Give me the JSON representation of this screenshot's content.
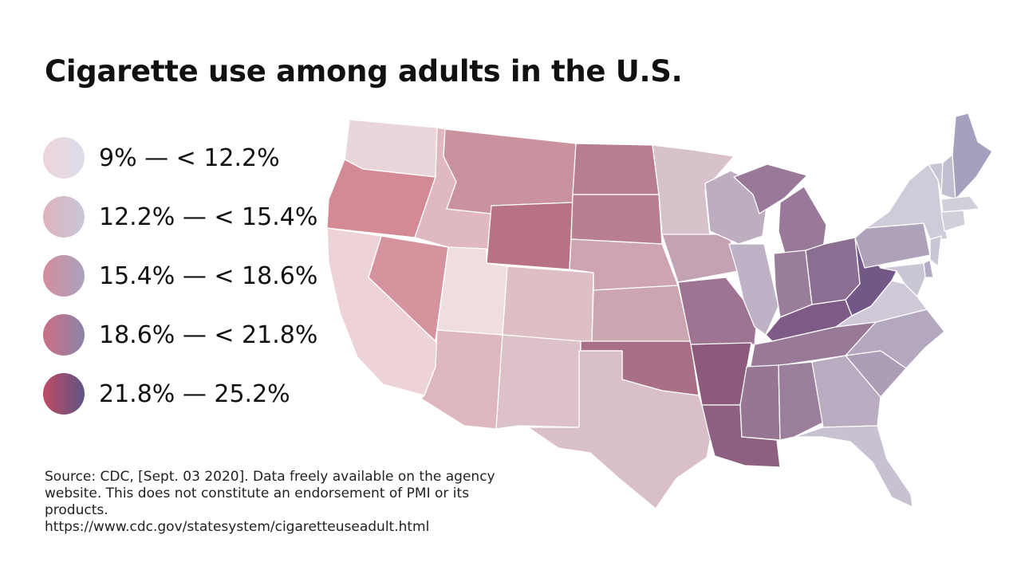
{
  "title": "Cigarette use among adults in the U.S.",
  "legend": [
    {
      "label": "9% — < 12.2%",
      "from": "#efd3da",
      "to": "#dcdde8"
    },
    {
      "label": "12.2% — < 15.4%",
      "from": "#dfb3bd",
      "to": "#c9c6d8"
    },
    {
      "label": "15.4% — < 18.6%",
      "from": "#d58d9c",
      "to": "#a9a3bf"
    },
    {
      "label": "18.6% — < 21.8%",
      "from": "#cc6f84",
      "to": "#8a84a8"
    },
    {
      "label": "21.8% — 25.2%",
      "from": "#c04a64",
      "to": "#5e5585"
    }
  ],
  "source": {
    "line1": "Source: CDC, [Sept. 03 2020]. Data freely available on the agency",
    "line2": "website. This does not constitute an endorsement of PMI or its",
    "line3": "products.",
    "url": "https://www.cdc.gov/statesystem/cigaretteuseadult.html"
  },
  "states": [
    {
      "name": "Washington",
      "fill": "#e8d6db"
    },
    {
      "name": "Oregon",
      "fill": "#d48a95"
    },
    {
      "name": "California",
      "fill": "#edd3d8"
    },
    {
      "name": "Nevada",
      "fill": "#d5939d"
    },
    {
      "name": "Idaho",
      "fill": "#e0b8c0"
    },
    {
      "name": "Montana",
      "fill": "#c9929e"
    },
    {
      "name": "Wyoming",
      "fill": "#b87285"
    },
    {
      "name": "Utah",
      "fill": "#efdde0"
    },
    {
      "name": "Arizona",
      "fill": "#deb6be"
    },
    {
      "name": "Colorado",
      "fill": "#dfbfc6"
    },
    {
      "name": "New Mexico",
      "fill": "#dcc1c8"
    },
    {
      "name": "North Dakota",
      "fill": "#b57d8d"
    },
    {
      "name": "South Dakota",
      "fill": "#b77f8f"
    },
    {
      "name": "Nebraska",
      "fill": "#cda4b0"
    },
    {
      "name": "Kansas",
      "fill": "#cba6b1"
    },
    {
      "name": "Oklahoma",
      "fill": "#a86f86"
    },
    {
      "name": "Texas",
      "fill": "#d9bfc8"
    },
    {
      "name": "Minnesota",
      "fill": "#d7c2cc"
    },
    {
      "name": "Iowa",
      "fill": "#c3a3b3"
    },
    {
      "name": "Missouri",
      "fill": "#9f7392"
    },
    {
      "name": "Arkansas",
      "fill": "#8c5a7c"
    },
    {
      "name": "Louisiana",
      "fill": "#8d5f80"
    },
    {
      "name": "Wisconsin",
      "fill": "#beacbf"
    },
    {
      "name": "Illinois",
      "fill": "#bdb2c6"
    },
    {
      "name": "Michigan",
      "fill": "#9a7899"
    },
    {
      "name": "Indiana",
      "fill": "#9a7c9b"
    },
    {
      "name": "Ohio",
      "fill": "#8b6e92"
    },
    {
      "name": "Kentucky",
      "fill": "#7e5a86"
    },
    {
      "name": "Tennessee",
      "fill": "#987a98"
    },
    {
      "name": "Mississippi",
      "fill": "#967693"
    },
    {
      "name": "Alabama",
      "fill": "#9b7e9b"
    },
    {
      "name": "Georgia",
      "fill": "#b9abc0"
    },
    {
      "name": "Florida",
      "fill": "#c8c1d2"
    },
    {
      "name": "South Carolina",
      "fill": "#ad9eb7"
    },
    {
      "name": "North Carolina",
      "fill": "#b3a8bd"
    },
    {
      "name": "Virginia",
      "fill": "#cfc9d7"
    },
    {
      "name": "West Virginia",
      "fill": "#735887"
    },
    {
      "name": "Pennsylvania",
      "fill": "#aea2ba"
    },
    {
      "name": "New York",
      "fill": "#cfcbd9"
    },
    {
      "name": "Vermont",
      "fill": "#c7c4d3"
    },
    {
      "name": "New Hampshire",
      "fill": "#c1bed0"
    },
    {
      "name": "Maine",
      "fill": "#a3a1bd"
    },
    {
      "name": "Massachusetts",
      "fill": "#d2cfdb"
    },
    {
      "name": "Connecticut",
      "fill": "#d2cfdb"
    },
    {
      "name": "New Jersey",
      "fill": "#cbc6d4"
    },
    {
      "name": "Delaware",
      "fill": "#b3abc3"
    },
    {
      "name": "Maryland",
      "fill": "#cbc6d4"
    }
  ]
}
